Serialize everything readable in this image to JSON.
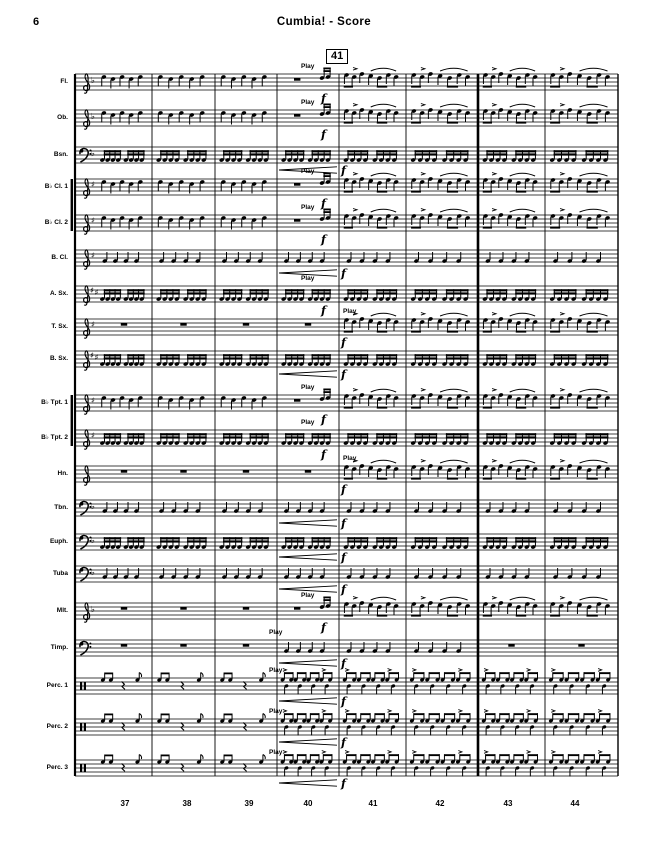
{
  "page": {
    "number": "6",
    "title": "Cumbia! - Score",
    "rehearsal_mark": "41"
  },
  "annotations": {
    "play_label": "Play",
    "forte_symbol": "f"
  },
  "measure_numbers": [
    "37",
    "38",
    "39",
    "40",
    "41",
    "42",
    "43",
    "44"
  ],
  "colors": {
    "ink": "#000000",
    "paper": "#ffffff"
  },
  "staves": [
    {
      "label": "Fl.",
      "clef": "treble",
      "key": "flat",
      "patterns": [
        "comp",
        "comp",
        "comp",
        "pickup",
        "mel",
        "mel",
        "mel",
        "mel"
      ],
      "play": "pre41",
      "forte": "m40end",
      "hairpin": false
    },
    {
      "label": "Ob.",
      "clef": "treble",
      "key": "flat",
      "patterns": [
        "comp",
        "comp",
        "comp",
        "pickup",
        "mel",
        "mel",
        "mel",
        "mel"
      ],
      "play": "pre41",
      "forte": "m40end",
      "hairpin": false
    },
    {
      "label": "Bsn.",
      "clef": "bass",
      "key": "flat",
      "patterns": [
        "e8",
        "e8",
        "e8",
        "e8",
        "e8",
        "e8",
        "e8",
        "e8"
      ],
      "play": null,
      "forte": "m41",
      "hairpin": true
    },
    {
      "label": "B♭ Cl. 1",
      "clef": "treble",
      "key": "sharp",
      "patterns": [
        "comp",
        "comp",
        "comp",
        "pickup",
        "mel",
        "mel",
        "mel",
        "mel"
      ],
      "play": "pre41",
      "forte": "m40end",
      "hairpin": false
    },
    {
      "label": "B♭ Cl. 2",
      "clef": "treble",
      "key": "sharp",
      "patterns": [
        "comp",
        "comp",
        "comp",
        "pickup",
        "mel",
        "mel",
        "mel",
        "mel"
      ],
      "play": "pre41",
      "forte": "m40end",
      "hairpin": false
    },
    {
      "label": "B. Cl.",
      "clef": "treble",
      "key": "sharp",
      "patterns": [
        "q4",
        "q4",
        "q4",
        "q4",
        "q4",
        "q4",
        "q4",
        "q4"
      ],
      "play": null,
      "forte": "m41",
      "hairpin": true
    },
    {
      "label": "A. Sx.",
      "clef": "treble",
      "key": "sharp2",
      "patterns": [
        "e8",
        "e8",
        "e8",
        "e8",
        "e8",
        "e8",
        "e8",
        "e8"
      ],
      "play": "pre41",
      "forte": "m40end",
      "hairpin": false
    },
    {
      "label": "T. Sx.",
      "clef": "treble",
      "key": "sharp",
      "patterns": [
        "rest",
        "rest",
        "rest",
        "rest",
        "mel",
        "mel",
        "mel",
        "mel"
      ],
      "play": "at41",
      "forte": "m41",
      "hairpin": false
    },
    {
      "label": "B. Sx.",
      "clef": "treble",
      "key": "sharp2",
      "patterns": [
        "e8",
        "e8",
        "e8",
        "e8",
        "e8",
        "e8",
        "e8",
        "e8"
      ],
      "play": null,
      "forte": "m41",
      "hairpin": true
    },
    {
      "label": "B♭ Tpt. 1",
      "clef": "treble",
      "key": "sharp",
      "patterns": [
        "comp",
        "comp",
        "comp",
        "pickup",
        "mel",
        "mel",
        "mel",
        "mel"
      ],
      "play": "pre41",
      "forte": "m40end",
      "hairpin": false
    },
    {
      "label": "B♭ Tpt. 2",
      "clef": "treble",
      "key": "sharp",
      "patterns": [
        "e8",
        "e8",
        "e8",
        "e8",
        "e8",
        "e8",
        "e8",
        "e8"
      ],
      "play": "pre41",
      "forte": "m40end",
      "hairpin": false
    },
    {
      "label": "Hn.",
      "clef": "treble",
      "key": "none",
      "patterns": [
        "rest",
        "rest",
        "rest",
        "rest",
        "mel",
        "mel",
        "mel",
        "mel"
      ],
      "play": "at41",
      "forte": "m41",
      "hairpin": false
    },
    {
      "label": "Tbn.",
      "clef": "bass",
      "key": "flat",
      "patterns": [
        "q4",
        "q4",
        "q4",
        "q4",
        "q4",
        "q4",
        "q4",
        "q4"
      ],
      "play": null,
      "forte": "m41",
      "hairpin": true
    },
    {
      "label": "Euph.",
      "clef": "bass",
      "key": "flat",
      "patterns": [
        "e8",
        "e8",
        "e8",
        "e8",
        "e8",
        "e8",
        "e8",
        "e8"
      ],
      "play": null,
      "forte": "m41",
      "hairpin": true
    },
    {
      "label": "Tuba",
      "clef": "bass",
      "key": "flat",
      "patterns": [
        "q4",
        "q4",
        "q4",
        "q4",
        "q4",
        "q4",
        "q4",
        "q4"
      ],
      "play": null,
      "forte": "m41",
      "hairpin": true
    },
    {
      "label": "Mlt.",
      "clef": "treble",
      "key": "flat",
      "patterns": [
        "rest",
        "rest",
        "rest",
        "pickup",
        "mel",
        "mel",
        "mel",
        "mel"
      ],
      "play": "pre41",
      "forte": "m40end",
      "hairpin": false
    },
    {
      "label": "Timp.",
      "clef": "bass",
      "key": "none",
      "patterns": [
        "rest",
        "rest",
        "rest",
        "q4",
        "q4",
        "q4",
        "rest",
        "rest"
      ],
      "play": "at40",
      "forte": "m41",
      "hairpin": true
    },
    {
      "label": "Perc. 1",
      "clef": "perc",
      "key": "none",
      "patterns": [
        "qr",
        "qr",
        "qr",
        "perc",
        "perc",
        "perc",
        "perc",
        "perc"
      ],
      "play": "at40",
      "forte": "m41",
      "hairpin": true
    },
    {
      "label": "Perc. 2",
      "clef": "perc",
      "key": "none",
      "patterns": [
        "qr",
        "qr",
        "qr",
        "perc",
        "perc",
        "perc",
        "perc",
        "perc"
      ],
      "play": "at40",
      "forte": "m41",
      "hairpin": true
    },
    {
      "label": "Perc. 3",
      "clef": "perc",
      "key": "none",
      "patterns": [
        "qr",
        "qr",
        "qr",
        "perc",
        "perc",
        "perc",
        "perc",
        "perc"
      ],
      "play": "at40",
      "forte": "m41",
      "hairpin": true
    }
  ]
}
